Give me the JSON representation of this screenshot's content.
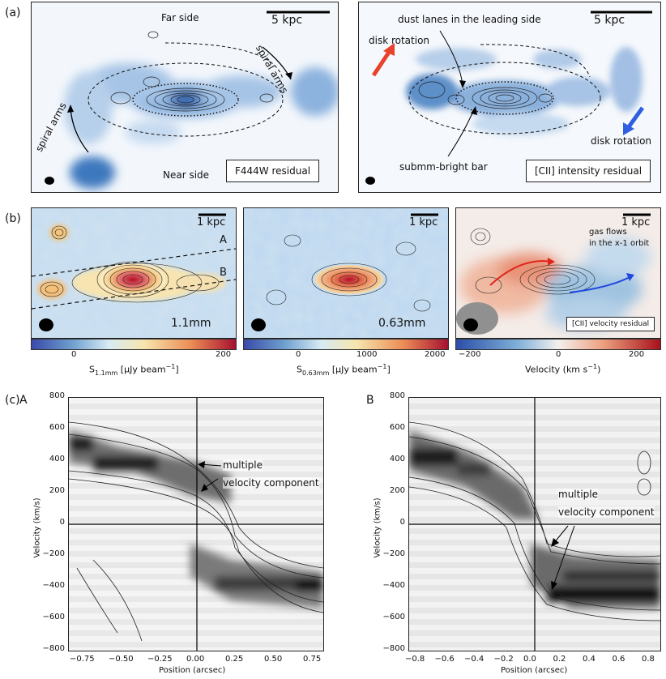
{
  "row_labels": {
    "a": "(a)",
    "b": "(b)",
    "c": "(c)"
  },
  "panel_a_left": {
    "scale": "5 kpc",
    "far_side": "Far side",
    "near_side": "Near side",
    "spiral_arms_top": "spiral arms",
    "spiral_arms_left": "spiral arms",
    "label": "F444W residual"
  },
  "panel_a_right": {
    "scale": "5 kpc",
    "dust_lanes": "dust lanes in the leading side",
    "disk_rotation_left": "disk rotation",
    "disk_rotation_right": "disk rotation",
    "bar": "submm-bright bar",
    "label": "[CII] intensity residual",
    "colors": {
      "red_arrow": "#e8412c",
      "blue_arrow": "#2f5fe0"
    }
  },
  "panel_b1": {
    "scale": "1 kpc",
    "line_a": "A",
    "line_b": "B",
    "band": "1.1mm",
    "cbar_ticks": [
      "0",
      "200"
    ],
    "cbar_label": "S",
    "cbar_sub": "1.1mm",
    "cbar_unit": " [μJy beam",
    "cbar_exp": "−1",
    "cbar_close": "]"
  },
  "panel_b2": {
    "scale": "1 kpc",
    "band": "0.63mm",
    "cbar_ticks": [
      "0",
      "1000",
      "2000"
    ],
    "cbar_label": "S",
    "cbar_sub": "0.63mm",
    "cbar_unit": " [μJy beam",
    "cbar_exp": "−1",
    "cbar_close": "]"
  },
  "panel_b3": {
    "scale": "1 kpc",
    "gas_flows_1": "gas flows",
    "gas_flows_2": "in the x-1 orbit",
    "label": "[CII] velocity residual",
    "cbar_ticks": [
      "−200",
      "0",
      "200"
    ],
    "cbar_label": "Velocity (km s",
    "cbar_exp": "−1",
    "cbar_close": ")"
  },
  "panel_cA": {
    "title": "A",
    "ylabel": "Velocity (km/s)",
    "xlabel": "Position (arcsec)",
    "yticks": [
      "800",
      "600",
      "400",
      "200",
      "0",
      "−200",
      "−400",
      "−600",
      "−800"
    ],
    "xticks": [
      "−0.75",
      "−0.50",
      "−0.25",
      "0.00",
      "0.25",
      "0.50",
      "0.75"
    ],
    "annot_1": "multiple",
    "annot_2": "velocity component"
  },
  "panel_cB": {
    "title": "B",
    "ylabel": "Velocity (km/s)",
    "xlabel": "Position (arcsec)",
    "yticks": [
      "800",
      "600",
      "400",
      "200",
      "0",
      "−200",
      "−400",
      "−600",
      "−800"
    ],
    "xticks": [
      "−0.8",
      "−0.6",
      "−0.4",
      "−0.2",
      "0.0",
      "0.2",
      "0.4",
      "0.6",
      "0.8"
    ],
    "annot_1": "multiple",
    "annot_2": "velocity component"
  }
}
